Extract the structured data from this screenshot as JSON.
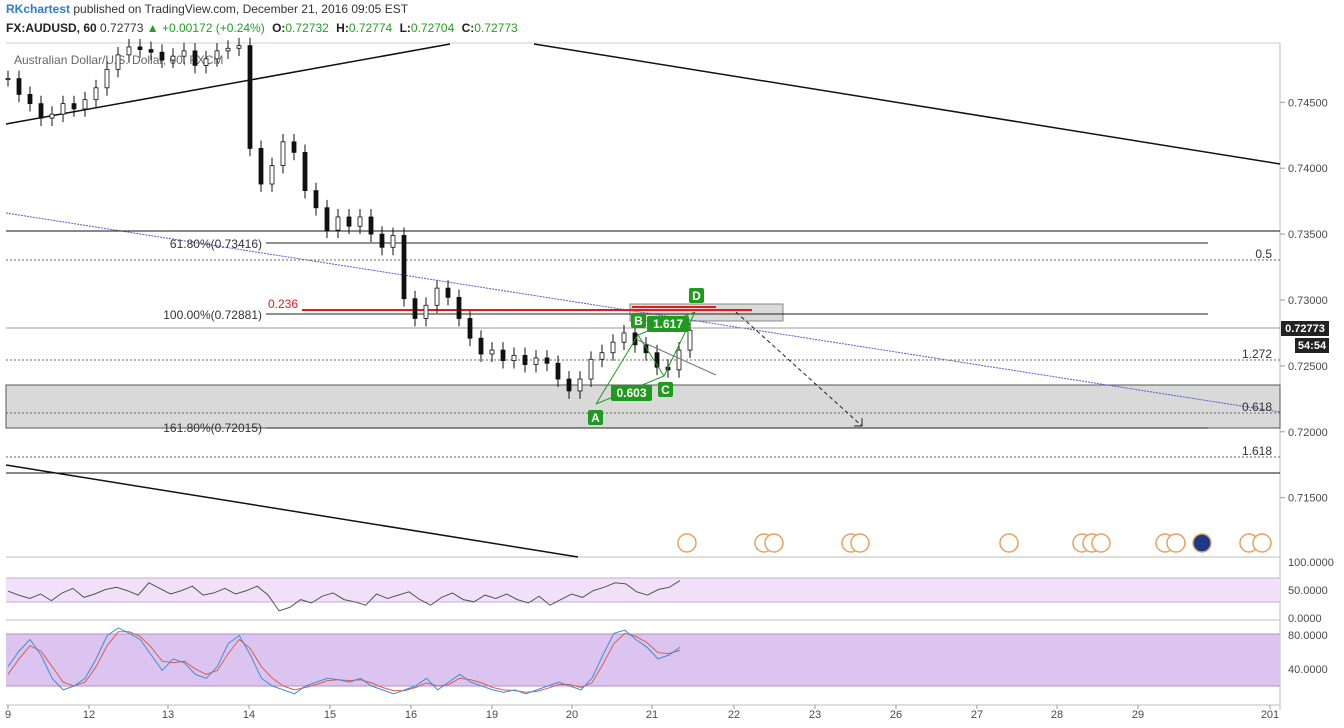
{
  "header": {
    "author": "RKchartest",
    "published_text": "published on TradingView.com, December 21, 2016 09:05 EST",
    "symbol": "FX:AUDUSD, 60",
    "last": "0.72773",
    "change": "▲ +0.00172 (+0.24%)",
    "o_label": "O:",
    "o": "0.72732",
    "h_label": "H:",
    "h": "0.72774",
    "l_label": "L:",
    "l": "0.72704",
    "c_label": "C:",
    "c": "0.72773"
  },
  "colors": {
    "up": "#21a121",
    "fib_red": "#e31a1c",
    "pattern_green": "#1f9a1f",
    "trend_blue": "#5a5ad0",
    "rsi": "#555555",
    "stoch_k": "#3b8fd4",
    "stoch_d": "#e05a4a",
    "band_rsi": "#f0e0f8",
    "band_stoch": "#dcc4f0"
  },
  "chart_data": {
    "type": "line",
    "title": "Australian Dollar/U.S. Dollar, 60, FXCM",
    "x_ticks": [
      "9",
      "12",
      "13",
      "14",
      "15",
      "16",
      "19",
      "20",
      "21",
      "22",
      "23",
      "26",
      "27",
      "28",
      "29",
      "201"
    ],
    "y_ticks": [
      "0.74500",
      "0.74000",
      "0.73500",
      "0.73000",
      "0.72500",
      "0.72000",
      "0.71500"
    ],
    "ylim": [
      0.7105,
      0.7495
    ],
    "price_label": "0.72773",
    "countdown": "54:54",
    "close_series": [
      0.7468,
      0.7456,
      0.7449,
      0.7438,
      0.7441,
      0.7449,
      0.7445,
      0.7452,
      0.7461,
      0.7475,
      0.7486,
      0.7492,
      0.749,
      0.7488,
      0.7482,
      0.7485,
      0.7489,
      0.7478,
      0.7483,
      0.7489,
      0.7491,
      0.7493,
      0.7415,
      0.7388,
      0.7402,
      0.742,
      0.7412,
      0.7383,
      0.737,
      0.7353,
      0.7363,
      0.7356,
      0.7363,
      0.735,
      0.734,
      0.7349,
      0.7301,
      0.7286,
      0.7296,
      0.7309,
      0.7302,
      0.7286,
      0.7271,
      0.7259,
      0.7262,
      0.7254,
      0.7258,
      0.7251,
      0.7256,
      0.7252,
      0.724,
      0.7231,
      0.724,
      0.7255,
      0.726,
      0.7268,
      0.7275,
      0.7266,
      0.726,
      0.7249,
      0.7247,
      0.7262,
      0.7277
    ],
    "fib_levels": [
      {
        "label": "61.80%(0.73416)",
        "value": 0.73416
      },
      {
        "label": "100.00%(0.72881)",
        "value": 0.72881
      },
      {
        "label": "161.80%(0.72015)",
        "value": 0.72015
      }
    ],
    "ratio_levels": [
      {
        "label": "0.5",
        "value": 0.7329
      },
      {
        "label": "1.272",
        "value": 0.7256
      },
      {
        "label": "0.618",
        "value": 0.7212
      },
      {
        "label": "1.618",
        "value": 0.7178
      }
    ],
    "red_level": {
      "label": "0.236",
      "value": 0.729
    },
    "pattern": {
      "points": [
        {
          "name": "A",
          "x": "20",
          "y": 0.7222
        },
        {
          "name": "B",
          "x": "20.8",
          "y": 0.7273
        },
        {
          "name": "C",
          "x": "21.2",
          "y": 0.7246
        },
        {
          "name": "D",
          "x": "21.5",
          "y": 0.7293
        }
      ],
      "ratios": [
        "0.603",
        "1.617"
      ]
    },
    "rsi": {
      "levels": [
        "100.0000",
        "50.0000",
        "0.0000"
      ],
      "values": [
        55,
        48,
        42,
        50,
        38,
        52,
        60,
        44,
        50,
        58,
        62,
        56,
        48,
        70,
        60,
        50,
        56,
        64,
        48,
        52,
        60,
        50,
        56,
        64,
        48,
        20,
        26,
        40,
        34,
        46,
        52,
        40,
        36,
        30,
        50,
        42,
        48,
        54,
        40,
        30,
        44,
        52,
        40,
        36,
        48,
        42,
        50,
        40,
        34,
        46,
        30,
        40,
        50,
        44,
        56,
        62,
        70,
        68,
        54,
        48,
        58,
        62,
        74
      ]
    },
    "stoch": {
      "levels": [
        "80.0000",
        "40.0000"
      ],
      "k": [
        45,
        65,
        80,
        60,
        30,
        15,
        20,
        30,
        55,
        85,
        95,
        88,
        80,
        60,
        40,
        55,
        50,
        35,
        30,
        45,
        75,
        85,
        60,
        30,
        20,
        15,
        10,
        20,
        25,
        30,
        28,
        25,
        30,
        20,
        15,
        10,
        15,
        20,
        30,
        15,
        25,
        35,
        25,
        20,
        15,
        12,
        15,
        10,
        15,
        20,
        25,
        20,
        15,
        30,
        60,
        88,
        92,
        80,
        70,
        55,
        60,
        70
      ],
      "d": [
        35,
        55,
        72,
        65,
        45,
        25,
        20,
        25,
        45,
        72,
        90,
        90,
        84,
        70,
        52,
        50,
        52,
        42,
        35,
        40,
        62,
        80,
        68,
        45,
        30,
        20,
        15,
        18,
        22,
        27,
        28,
        27,
        28,
        24,
        18,
        14,
        14,
        18,
        24,
        20,
        22,
        30,
        28,
        24,
        18,
        15,
        14,
        12,
        13,
        17,
        22,
        22,
        18,
        24,
        48,
        75,
        88,
        84,
        76,
        63,
        62,
        66
      ]
    }
  }
}
